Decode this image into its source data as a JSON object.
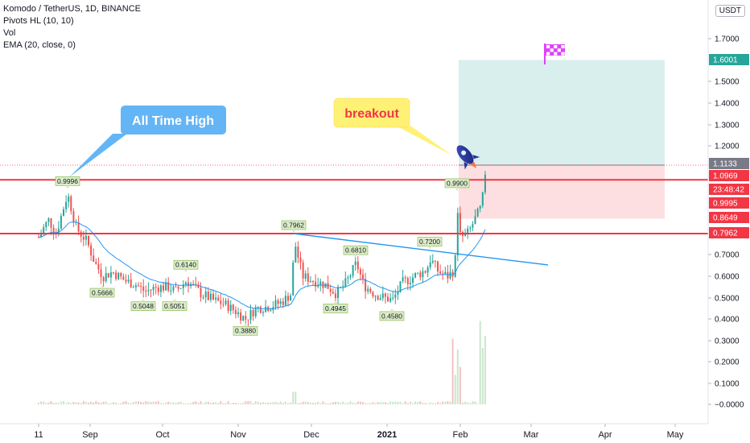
{
  "header": {
    "title": "Komodo / TetherUS, 1D, BINANCE",
    "indicators": [
      "Pivots HL (10, 10)",
      "Vol",
      "EMA (20, close, 0)"
    ],
    "currency": "USDT"
  },
  "chart_data": {
    "type": "candlestick",
    "x_ticks": [
      "11",
      "Sep",
      "Oct",
      "Nov",
      "Dec",
      "2021",
      "Feb",
      "Mar",
      "Apr",
      "May"
    ],
    "y_ticks": [
      "1.7000",
      "1.5000",
      "1.4000",
      "1.3000",
      "1.2000",
      "0.7000",
      "0.6000",
      "0.5000",
      "0.4000",
      "0.3000",
      "0.2000",
      "0.1000",
      "−0.0000"
    ],
    "ylim": [
      -0.06,
      1.79
    ],
    "price_labels": [
      {
        "text": "1.6001",
        "value": 1.6001,
        "color": "#26a69a"
      },
      {
        "text": "1.1133",
        "value": 1.1133,
        "color": "#787b86"
      },
      {
        "text": "1.0969",
        "value": 1.0969,
        "color": "#f23645"
      },
      {
        "text": "23:48:42",
        "value": 1.045,
        "color": "#f23645"
      },
      {
        "text": "0.9995",
        "value": 0.9995,
        "color": "#f23645"
      },
      {
        "text": "0.8649",
        "value": 0.8649,
        "color": "#f23645"
      },
      {
        "text": "0.7962",
        "value": 0.7962,
        "color": "#f23645"
      }
    ],
    "horizontal_levels": [
      {
        "value": 1.045,
        "color": "#f23645"
      },
      {
        "value": 0.7962,
        "color": "#f23645"
      }
    ],
    "pivots": [
      {
        "text": "0.9996",
        "x": 84,
        "value": 0.9996,
        "pos": "high"
      },
      {
        "text": "0.5666",
        "x": 127,
        "value": 0.5666,
        "pos": "low"
      },
      {
        "text": "0.5048",
        "x": 178,
        "value": 0.5048,
        "pos": "low"
      },
      {
        "text": "0.5051",
        "x": 217,
        "value": 0.5051,
        "pos": "low"
      },
      {
        "text": "0.6140",
        "x": 231,
        "value": 0.614,
        "pos": "high"
      },
      {
        "text": "0.3880",
        "x": 305,
        "value": 0.388,
        "pos": "low"
      },
      {
        "text": "0.7962",
        "x": 365,
        "value": 0.7962,
        "pos": "high"
      },
      {
        "text": "0.4945",
        "x": 417,
        "value": 0.4945,
        "pos": "low"
      },
      {
        "text": "0.6810",
        "x": 442,
        "value": 0.681,
        "pos": "high"
      },
      {
        "text": "0.4580",
        "x": 487,
        "value": 0.458,
        "pos": "low"
      },
      {
        "text": "0.7200",
        "x": 534,
        "value": 0.72,
        "pos": "high"
      },
      {
        "text": "0.9900",
        "x": 568,
        "value": 0.99,
        "pos": "high"
      }
    ],
    "annotations": {
      "callout_ath": "All Time High",
      "callout_breakout": "breakout"
    },
    "position_box": {
      "target": 1.6001,
      "entry": 1.1133,
      "stop": 0.8649
    },
    "trendline": {
      "from_value": 0.7962,
      "to_value": 0.652
    },
    "colors": {
      "up": "#26a69a",
      "down": "#ef5350",
      "ema": "#2196f3",
      "pivot_bg": "#dcedc8",
      "level": "#f23645"
    }
  }
}
